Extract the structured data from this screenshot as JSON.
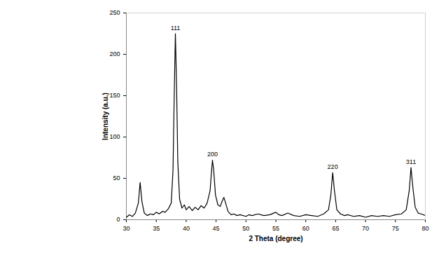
{
  "chart_data": {
    "type": "line",
    "xlabel": "2 Theta (degree)",
    "ylabel": "Intensity (a.u.)",
    "color": "#000000",
    "xlim": [
      30,
      80
    ],
    "xticks": [
      30,
      35,
      40,
      45,
      50,
      55,
      60,
      65,
      70,
      75,
      80
    ],
    "ylim": [
      0,
      250
    ],
    "yticks": [
      0,
      50,
      100,
      150,
      200,
      250
    ],
    "grid": false,
    "x": [
      30,
      30.5,
      31,
      31.5,
      32,
      32.3,
      32.6,
      33,
      33.5,
      34,
      34.5,
      35,
      35.5,
      36,
      36.5,
      37,
      37.5,
      37.8,
      38.0,
      38.2,
      38.4,
      38.6,
      38.9,
      39.3,
      39.7,
      40,
      40.5,
      41,
      41.5,
      42,
      42.5,
      43,
      43.5,
      44,
      44.2,
      44.4,
      44.6,
      44.9,
      45.3,
      45.7,
      46,
      46.3,
      46.6,
      47,
      47.5,
      48,
      48.5,
      49,
      50,
      50.5,
      51,
      52,
      53,
      54,
      55,
      55.5,
      56,
      57,
      58,
      59,
      60,
      61,
      62,
      63,
      63.8,
      64.2,
      64.5,
      64.8,
      65.2,
      65.8,
      66.5,
      67,
      68,
      69,
      70,
      71,
      72,
      73,
      74,
      75,
      76,
      76.8,
      77.3,
      77.6,
      77.9,
      78.3,
      78.8,
      79.3,
      80
    ],
    "values": [
      3,
      6,
      4,
      8,
      20,
      45,
      22,
      8,
      5,
      7,
      6,
      9,
      7,
      10,
      9,
      13,
      20,
      60,
      150,
      225,
      160,
      70,
      25,
      14,
      18,
      12,
      16,
      11,
      15,
      12,
      17,
      14,
      20,
      35,
      55,
      72,
      60,
      30,
      18,
      16,
      22,
      27,
      20,
      10,
      6,
      7,
      5,
      6,
      4,
      6,
      5,
      7,
      5,
      6,
      9,
      6,
      5,
      8,
      5,
      4,
      6,
      5,
      4,
      7,
      12,
      30,
      57,
      35,
      12,
      7,
      5,
      6,
      4,
      5,
      3,
      5,
      4,
      5,
      4,
      6,
      7,
      12,
      35,
      63,
      40,
      15,
      8,
      7,
      5
    ],
    "annotations": [
      {
        "text": "111",
        "x": 38.2,
        "y": 225
      },
      {
        "text": "200",
        "x": 44.4,
        "y": 72
      },
      {
        "text": "220",
        "x": 64.5,
        "y": 57
      },
      {
        "text": "311",
        "x": 77.6,
        "y": 63
      }
    ]
  }
}
